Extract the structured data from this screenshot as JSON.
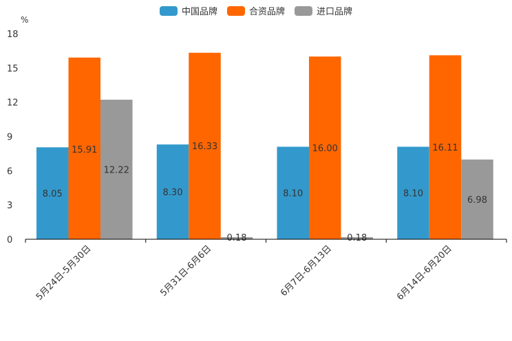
{
  "chart_data": {
    "type": "bar",
    "unit_label": "%",
    "categories": [
      "5月24日-5月30日",
      "5月31日-6月6日",
      "6月7日-6月13日",
      "6月14日-6月20日"
    ],
    "series": [
      {
        "name": "中国品牌",
        "color": "#3399cc",
        "values": [
          8.05,
          8.3,
          8.1,
          8.1
        ],
        "labels": [
          "8.05",
          "8.30",
          "8.10",
          "8.10"
        ]
      },
      {
        "name": "合资品牌",
        "color": "#ff6600",
        "values": [
          15.91,
          16.33,
          16.0,
          16.11
        ],
        "labels": [
          "15.91",
          "16.33",
          "16.00",
          "16.11"
        ]
      },
      {
        "name": "进口品牌",
        "color": "#999999",
        "values": [
          12.22,
          0.18,
          0.18,
          6.98
        ],
        "labels": [
          "12.22",
          "0.18",
          "0.18",
          "6.98"
        ]
      }
    ],
    "ylim": [
      0,
      18
    ],
    "yticks": [
      0,
      3,
      6,
      9,
      12,
      15,
      18
    ],
    "legend_position": "top-center",
    "grid": false
  }
}
